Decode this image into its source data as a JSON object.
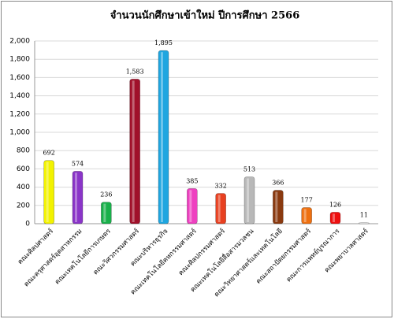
{
  "chart_data": {
    "type": "bar",
    "title": "จำนวนนักศึกษาเข้าใหม่ ปีการศึกษา 2566",
    "categories": [
      "คณะศิลปศาสตร์",
      "คณะครุศาสตร์อุตสาหกรรม",
      "คณะเทคโนโลยีการเกษตร",
      "คณะวิศวกรรมศาสตร์",
      "คณะบริหารธุรกิจ",
      "คณะเทคโนโลยีคหกรรมศาสตร์",
      "คณะศิลปกรรมศาสตร์",
      "คณะเทคโนโลยีสื่อสารมวลชน",
      "คณะวิทยาศาสตร์และเทคโนโลยี",
      "คณะสถาปัตยกรรมศาสตร์",
      "คณะการแพทย์บูรณาการ",
      "คณะพยาบาลศาสตร์"
    ],
    "values": [
      692,
      574,
      236,
      1583,
      1895,
      385,
      332,
      513,
      366,
      177,
      126,
      11
    ],
    "value_labels": [
      "692",
      "574",
      "236",
      "1,583",
      "1,895",
      "385",
      "332",
      "513",
      "366",
      "177",
      "126",
      "11"
    ],
    "colors": [
      "#f2f200",
      "#8a35c8",
      "#18b04a",
      "#a0102a",
      "#1fa6e0",
      "#ee40c0",
      "#e84020",
      "#b8b8b8",
      "#8a3a10",
      "#ee7010",
      "#ee1010",
      "#eeeeee"
    ],
    "ylim": [
      0,
      2000
    ],
    "yticks": [
      0,
      200,
      400,
      600,
      800,
      {
        "value": 1000,
        "label": "1,000"
      },
      {
        "value": 1200,
        "label": "1,200"
      },
      {
        "value": 1400,
        "label": "1,400"
      },
      {
        "value": 1600,
        "label": "1,600"
      },
      {
        "value": 1800,
        "label": "1,800"
      },
      {
        "value": 2000,
        "label": "2,000"
      }
    ],
    "grid": true
  }
}
